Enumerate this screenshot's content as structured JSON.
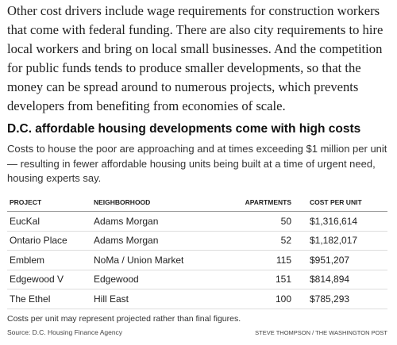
{
  "body": {
    "paragraph": "Other cost drivers include wage requirements for construction workers that come with federal funding. There are also city requirements to hire local workers and bring on local small businesses. And the competition for public funds tends to produce smaller developments, so that the money can be spread around to numerous projects, which prevents developers from benefiting from economies of scale."
  },
  "graphic": {
    "title": "D.C. affordable housing developments come with high costs",
    "subtitle": "Costs to house the poor are approaching and at times exceeding $1 million per unit — resulting in fewer affordable housing units being built at a time of urgent need, housing experts say.",
    "table": {
      "headers": [
        "PROJECT",
        "NEIGHBORHOOD",
        "APARTMENTS",
        "COST PER UNIT"
      ],
      "rows": [
        [
          "EucKal",
          "Adams Morgan",
          50,
          "$1,316,614"
        ],
        [
          "Ontario Place",
          "Adams Morgan",
          52,
          "$1,182,017"
        ],
        [
          "Emblem",
          "NoMa / Union Market",
          115,
          "$951,207"
        ],
        [
          "Edgewood V",
          "Edgewood",
          151,
          "$814,894"
        ],
        [
          "The Ethel",
          "Hill East",
          100,
          "$785,293"
        ]
      ]
    },
    "note": "Costs per unit may represent projected rather than final figures.",
    "source": "Source: D.C. Housing Finance Agency",
    "credit": "STEVE THOMPSON / THE WASHINGTON POST"
  }
}
